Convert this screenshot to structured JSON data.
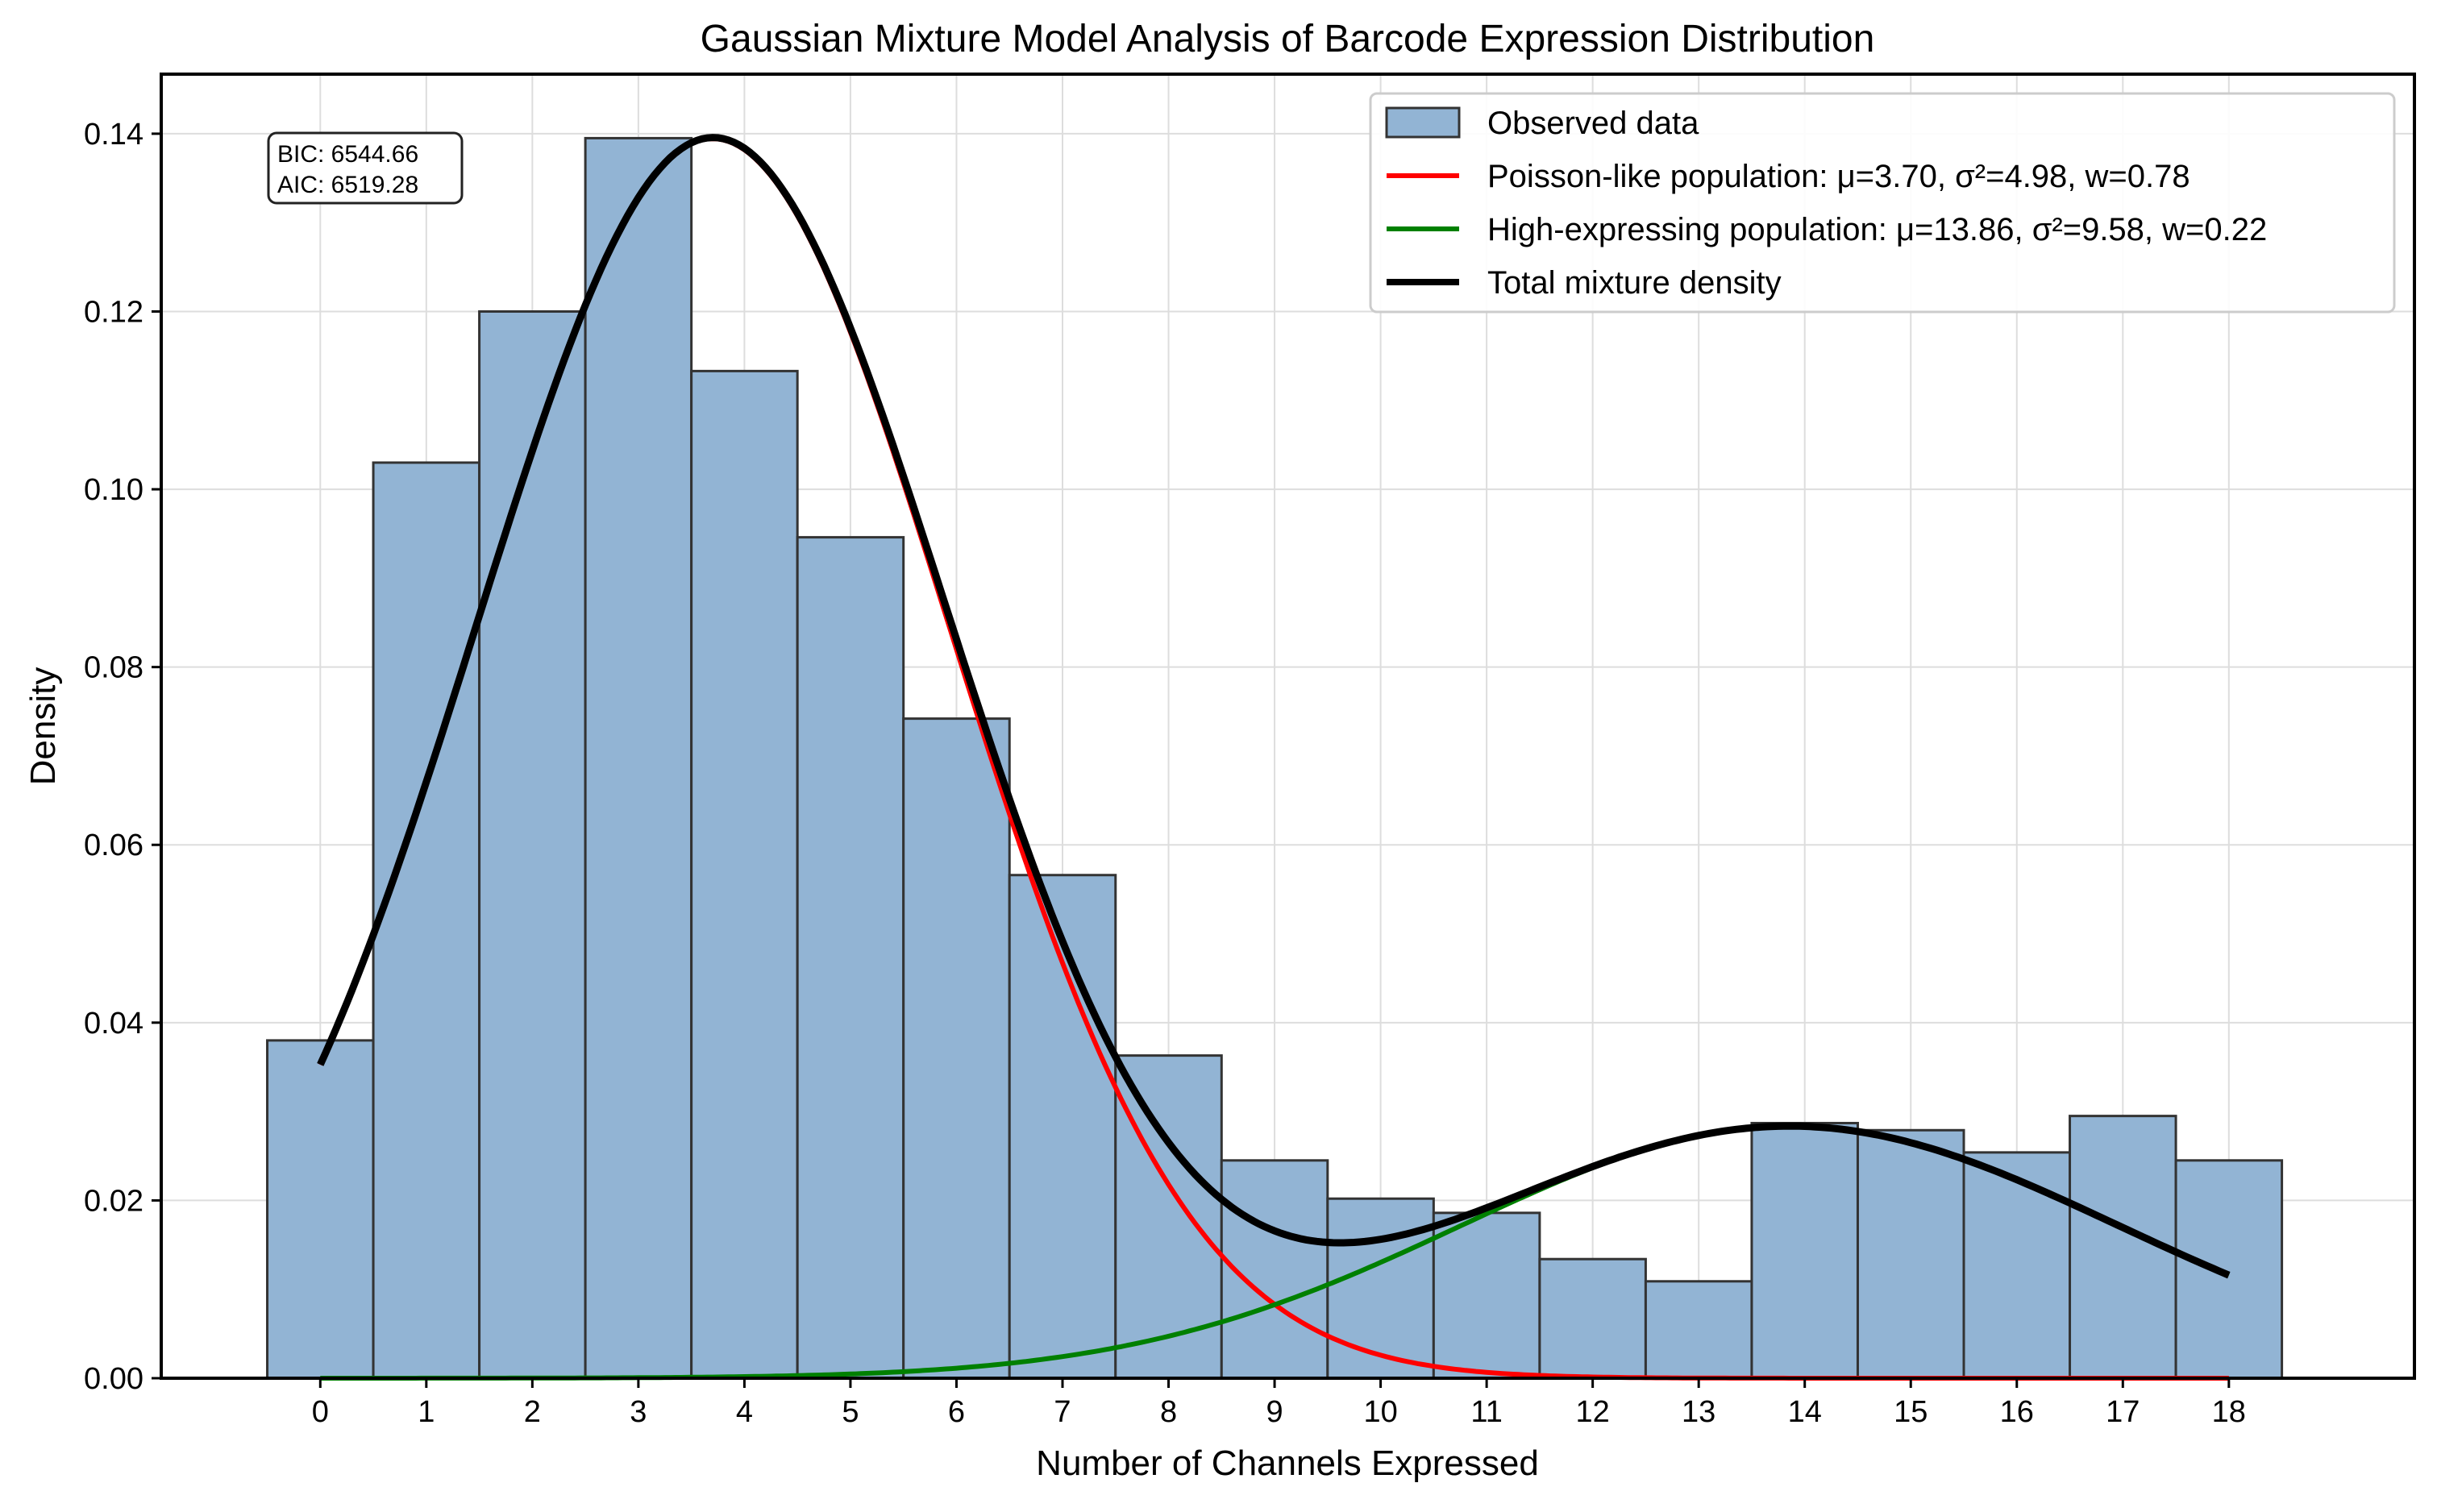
{
  "chart_data": {
    "type": "bar",
    "title": "Gaussian Mixture Model Analysis of Barcode Expression Distribution",
    "xlabel": "Number of Channels Expressed",
    "ylabel": "Density",
    "xlim": [
      -1.5,
      19.75
    ],
    "ylim": [
      0,
      0.1467
    ],
    "grid": true,
    "legend_position": "top-right",
    "categories": [
      "0",
      "1",
      "2",
      "3",
      "4",
      "5",
      "6",
      "7",
      "8",
      "9",
      "10",
      "11",
      "12",
      "13",
      "14",
      "15",
      "16",
      "17",
      "18"
    ],
    "yticks": [
      "0.00",
      "0.02",
      "0.04",
      "0.06",
      "0.08",
      "0.10",
      "0.12",
      "0.14"
    ],
    "yticks_values": [
      0,
      0.02,
      0.04,
      0.06,
      0.08,
      0.1,
      0.12,
      0.14
    ],
    "series": [
      {
        "name": "Observed data",
        "kind": "histogram",
        "color": "#92b4d4",
        "edge_color": "#333333",
        "values": [
          0.038,
          0.103,
          0.12,
          0.1395,
          0.1133,
          0.0946,
          0.0742,
          0.0566,
          0.0363,
          0.0245,
          0.0202,
          0.0186,
          0.0134,
          0.0109,
          0.0287,
          0.0279,
          0.0254,
          0.0295,
          0.0245
        ]
      },
      {
        "name": "Poisson-like population: μ=3.70, σ²=4.98, w=0.78",
        "kind": "gaussian",
        "color": "#ff0000",
        "mu": 3.7,
        "var": 4.98,
        "weight": 0.78
      },
      {
        "name": "High-expressing population: μ=13.86, σ²=9.58, w=0.22",
        "kind": "gaussian",
        "color": "#008000",
        "mu": 13.86,
        "var": 9.58,
        "weight": 0.22
      },
      {
        "name": "Total mixture density",
        "kind": "mixture",
        "color": "#000000"
      }
    ],
    "annotation": {
      "lines": [
        "BIC: 6544.66",
        "AIC: 6519.28"
      ],
      "position": "top-left"
    }
  }
}
